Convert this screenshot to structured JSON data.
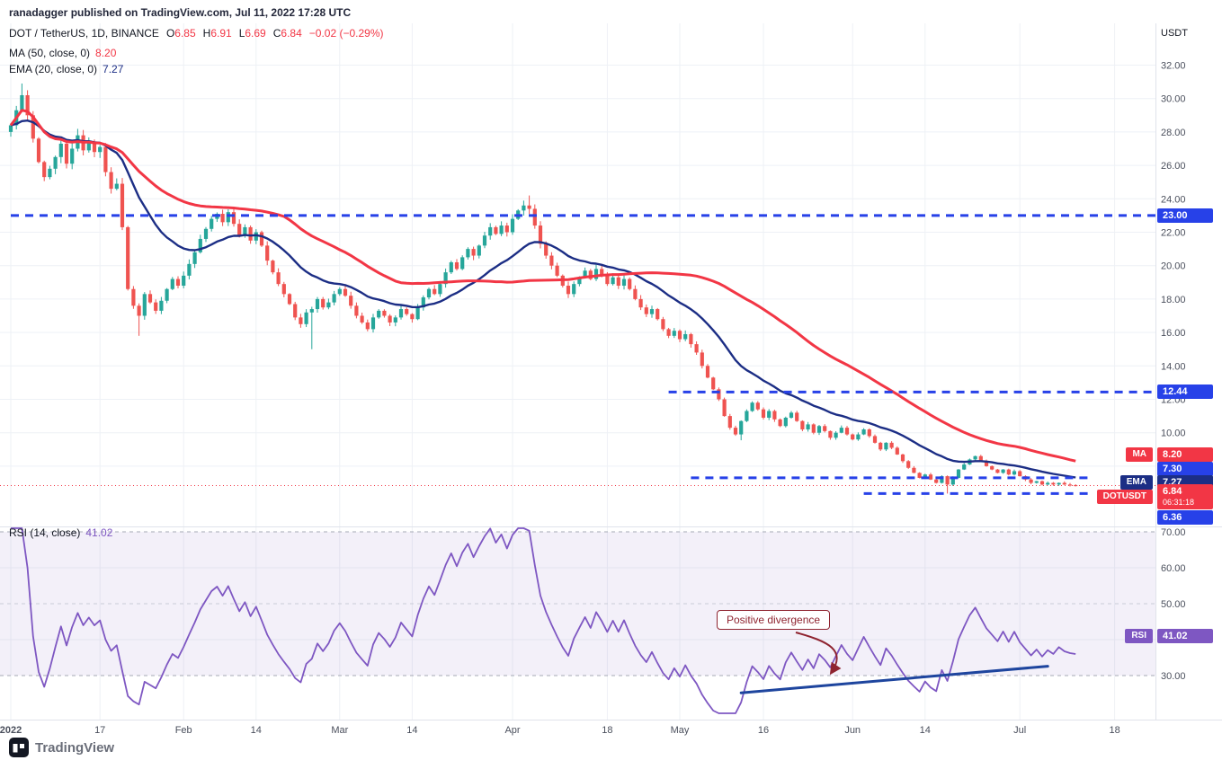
{
  "header": {
    "attribution": "ranadagger published on TradingView.com, Jul 11, 2022 17:28 UTC"
  },
  "axis": {
    "currency": "USDT"
  },
  "legend": {
    "symbol": "DOT / TetherUS, 1D, BINANCE",
    "o_label": "O",
    "o": "6.85",
    "h_label": "H",
    "h": "6.91",
    "l_label": "L",
    "l": "6.69",
    "c_label": "C",
    "c": "6.84",
    "change": "−0.02 (−0.29%)"
  },
  "ma": {
    "title": "MA (50, close, 0)",
    "value": "8.20",
    "period": 50
  },
  "ema": {
    "title": "EMA (20, close, 0)",
    "value": "7.27",
    "period": 20
  },
  "rsi": {
    "title": "RSI (14, close)",
    "value": "41.02",
    "period": 14
  },
  "badges": {
    "ma_tag": "MA",
    "ma_value": "8.20",
    "ema_tag": "EMA",
    "ema_value": "7.27",
    "symbol_tag": "DOTUSDT",
    "price_value": "6.84",
    "countdown": "06:31:18",
    "rsi_tag": "RSI",
    "rsi_value": "41.02"
  },
  "annotations": {
    "callout": {
      "text": "Positive divergence"
    },
    "trendline": {
      "from_day": 131,
      "from_rsi": 25.2,
      "to_day": 186,
      "to_rsi": 32.6
    }
  },
  "colors": {
    "up_candle": "#26a69a",
    "down_candle": "#ef5350",
    "ma_line": "#f23645",
    "ema_line": "#1c2e85",
    "rsi_line": "#7e57c2",
    "level_blue": "#2741e8",
    "annotation_red": "#8f2430",
    "trendline_navy": "#1e459e",
    "price_line_red": "#f23645"
  },
  "footer": {
    "brand": "TradingView",
    "logo_icon": "tradingview-logo-icon"
  },
  "chart_data": {
    "type": "candlestick",
    "symbol": "DOT/TetherUS",
    "exchange": "BINANCE",
    "interval": "1D",
    "start_date": "2022-01-01",
    "end_date": "2022-07-11",
    "title": "DOT / TetherUS, 1D, BINANCE",
    "last_price": 6.84,
    "last_candle": {
      "open": 6.85,
      "high": 6.91,
      "low": 6.69,
      "close": 6.84,
      "change": "−0.02 (−0.29%)"
    },
    "price_ticks": [
      32,
      30,
      28,
      26,
      24,
      22,
      20,
      18,
      16,
      14,
      12,
      10,
      8
    ],
    "rsi_ticks": [
      70,
      60,
      50,
      40,
      30
    ],
    "x_ticks": [
      {
        "label": "2022",
        "day": 0
      },
      {
        "label": "17",
        "day": 16
      },
      {
        "label": "Feb",
        "day": 31
      },
      {
        "label": "14",
        "day": 44
      },
      {
        "label": "Mar",
        "day": 59
      },
      {
        "label": "14",
        "day": 72
      },
      {
        "label": "Apr",
        "day": 90
      },
      {
        "label": "18",
        "day": 107
      },
      {
        "label": "May",
        "day": 120
      },
      {
        "label": "16",
        "day": 135
      },
      {
        "label": "Jun",
        "day": 151
      },
      {
        "label": "14",
        "day": 164
      },
      {
        "label": "Jul",
        "day": 181
      },
      {
        "label": "18",
        "day": 198
      }
    ],
    "first_open": 28.0,
    "closes": [
      28.4,
      29.3,
      30.2,
      29.0,
      27.6,
      26.2,
      25.3,
      25.8,
      26.5,
      27.3,
      26.1,
      27.0,
      27.8,
      26.9,
      27.4,
      26.8,
      27.1,
      25.6,
      24.6,
      24.9,
      22.3,
      18.6,
      17.6,
      17.0,
      18.3,
      17.8,
      17.3,
      17.9,
      18.6,
      19.2,
      18.8,
      19.4,
      20.1,
      20.8,
      21.6,
      22.2,
      22.8,
      23.1,
      22.6,
      23.2,
      22.5,
      21.8,
      22.3,
      21.5,
      22.0,
      21.2,
      20.3,
      19.6,
      18.9,
      18.3,
      17.7,
      16.9,
      16.5,
      17.2,
      17.4,
      18.0,
      17.5,
      17.8,
      18.3,
      18.6,
      18.2,
      17.6,
      17.0,
      16.6,
      16.2,
      16.9,
      17.3,
      17.0,
      16.6,
      16.9,
      17.4,
      17.1,
      16.8,
      17.5,
      18.1,
      18.6,
      18.3,
      18.9,
      19.6,
      20.2,
      19.8,
      20.5,
      21.0,
      20.6,
      21.2,
      21.8,
      22.3,
      21.9,
      22.4,
      22.0,
      22.8,
      23.3,
      23.6,
      23.4,
      22.4,
      21.3,
      20.6,
      20.0,
      19.4,
      18.8,
      18.3,
      18.9,
      19.3,
      19.7,
      19.2,
      19.8,
      19.4,
      18.9,
      19.3,
      18.8,
      19.2,
      18.6,
      18.0,
      17.5,
      17.1,
      17.4,
      16.8,
      16.2,
      15.8,
      16.1,
      15.6,
      15.9,
      15.3,
      14.8,
      14.0,
      13.3,
      12.6,
      12.0,
      11.0,
      10.3,
      9.9,
      10.7,
      11.3,
      11.8,
      11.4,
      10.9,
      11.3,
      10.8,
      10.4,
      10.9,
      11.2,
      10.7,
      10.2,
      10.5,
      10.0,
      10.4,
      10.1,
      9.7,
      10.0,
      10.3,
      9.9,
      9.6,
      9.9,
      10.2,
      9.8,
      9.4,
      9.0,
      9.4,
      9.1,
      8.7,
      8.3,
      7.9,
      7.6,
      7.3,
      7.5,
      7.2,
      7.0,
      7.4,
      6.9,
      7.3,
      7.8,
      8.1,
      8.4,
      8.6,
      8.3,
      8.0,
      7.8,
      7.6,
      7.8,
      7.5,
      7.7,
      7.4,
      7.2,
      7.0,
      7.1,
      6.9,
      7.0,
      6.9,
      7.0,
      6.9,
      6.86,
      6.84
    ],
    "wick_overrides": {
      "2": {
        "high": 30.9
      },
      "23": {
        "low": 15.8
      },
      "54": {
        "low": 15.0
      },
      "93": {
        "high": 24.2
      },
      "131": {
        "low": 9.55
      },
      "168": {
        "low": 6.36
      }
    },
    "overlays": [
      {
        "name": "MA",
        "period": 50,
        "last": 8.2
      },
      {
        "name": "EMA",
        "period": 20,
        "last": 7.27
      }
    ],
    "lower_pane": {
      "name": "RSI",
      "period": 14,
      "last": 41.02,
      "band": [
        30,
        70
      ]
    },
    "levels": [
      {
        "label": "23.00",
        "value": 23.0,
        "from_day": 0,
        "to_day": 207
      },
      {
        "label": "12.44",
        "value": 12.44,
        "from_day": 118,
        "to_day": 207
      },
      {
        "label": "7.30",
        "value": 7.3,
        "from_day": 122,
        "to_day": 194
      },
      {
        "label": "6.36",
        "value": 6.36,
        "from_day": 153,
        "to_day": 194
      }
    ]
  }
}
